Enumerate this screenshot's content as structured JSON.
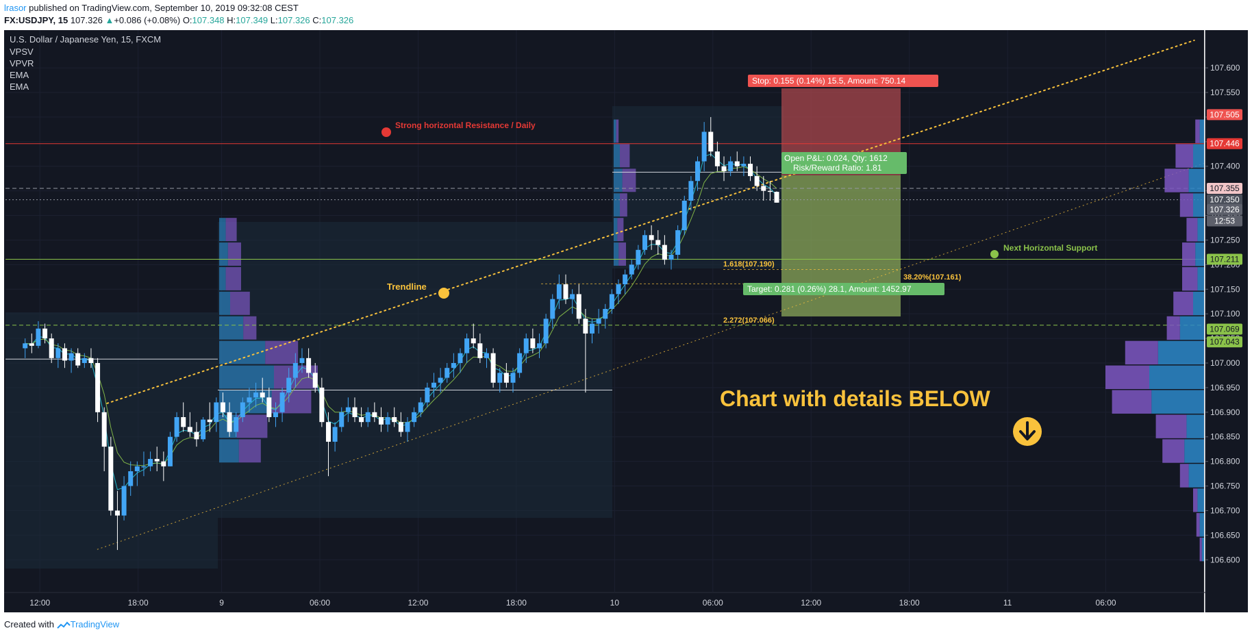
{
  "header": {
    "author": "lrasor",
    "published": "published on TradingView.com, September 10, 2019 09:32:08 CEST",
    "symbol": "FX:USDJPY, 15",
    "last": "107.326",
    "change": "+0.086 (+0.08%)",
    "o_label": "O:",
    "o": "107.348",
    "h_label": "H:",
    "h": "107.349",
    "l_label": "L:",
    "l": "107.326",
    "c_label": "C:",
    "c": "107.326"
  },
  "legend": {
    "instrument": "U.S. Dollar / Japanese Yen, 15, FXCM",
    "studies": [
      "VPSV",
      "VPVR",
      "EMA",
      "EMA"
    ]
  },
  "annotations": {
    "resistance": "Strong horizontal Resistance / Daily",
    "support": "Next Horizontal Support",
    "trendline": "Trendline",
    "fib1": "1.618(107.190)",
    "fib2": "38.20%(107.161)",
    "fib3": "2.272(107.066)",
    "stop": "Stop: 0.155 (0.14%) 15.5, Amount: 750.14",
    "target": "Target: 0.281 (0.26%) 28.1, Amount: 1452.97",
    "pnl1": "Open P&L: 0.024, Qty: 1612",
    "pnl2": "Risk/Reward Ratio: 1.81",
    "callout": "Chart with details BELOW"
  },
  "footer": {
    "created": "Created with",
    "brand": "TradingView"
  },
  "colors": {
    "background": "#131722",
    "up": "#42a5f5",
    "down": "#ffffff",
    "resistance": "#e53935",
    "support": "#8bc34a",
    "trend": "#f9c23c",
    "stop_zone": "#b44a4e",
    "target_zone": "#8ba85a",
    "vp_up": "#2d88c9",
    "vp_down": "#7e57c2"
  },
  "chart_data": {
    "type": "candlestick",
    "symbol": "USDJPY",
    "timeframe": "15",
    "ylim": [
      106.56,
      107.66
    ],
    "y_ticks": [
      "107.600",
      "107.550",
      "107.500",
      "107.450",
      "107.400",
      "107.350",
      "107.300",
      "107.250",
      "107.200",
      "107.150",
      "107.100",
      "107.050",
      "107.000",
      "106.950",
      "106.900",
      "106.850",
      "106.800",
      "106.750",
      "106.700",
      "106.650",
      "106.600"
    ],
    "x_ticks": [
      {
        "label": "12:00",
        "t": 0.9
      },
      {
        "label": "18:00",
        "t": 6.9
      },
      {
        "label": "9",
        "t": 12.0
      },
      {
        "label": "06:00",
        "t": 18.0
      },
      {
        "label": "12:00",
        "t": 24.0
      },
      {
        "label": "18:00",
        "t": 30.0
      },
      {
        "label": "10",
        "t": 36.0
      },
      {
        "label": "06:00",
        "t": 42.0
      },
      {
        "label": "12:00",
        "t": 48.0
      },
      {
        "label": "18:00",
        "t": 54.0
      },
      {
        "label": "11",
        "t": 60.0
      },
      {
        "label": "06:00",
        "t": 66.0
      }
    ],
    "xlim_hours": [
      -1.2,
      72.0
    ],
    "last_bar_hours": 45.9,
    "price_labels": [
      {
        "text": "107.505",
        "y": 107.505,
        "bg": "#ef5350",
        "fg": "#ffffff"
      },
      {
        "text": "107.446",
        "y": 107.446,
        "bg": "#e53935",
        "fg": "#ffffff"
      },
      {
        "text": "107.355",
        "y": 107.355,
        "bg": "#f2c6c8",
        "fg": "#131722"
      },
      {
        "text": "107.350",
        "y": 107.332,
        "bg": "#4a4f5a",
        "fg": "#ffffff"
      },
      {
        "text": "107.326",
        "y": 107.312,
        "bg": "#5d606b",
        "fg": "#ffffff"
      },
      {
        "text": "12:53",
        "y": 107.289,
        "bg": "#5d606b",
        "fg": "#ffffff"
      },
      {
        "text": "107.211",
        "y": 107.211,
        "bg": "#8bc34a",
        "fg": "#131722"
      },
      {
        "text": "107.069",
        "y": 107.069,
        "bg": "#8bc34a",
        "fg": "#131722"
      },
      {
        "text": "107.043",
        "y": 107.043,
        "bg": "#8bc34a",
        "fg": "#131722"
      }
    ],
    "levels": {
      "resistance": 107.446,
      "support": 107.211,
      "entry": 107.343,
      "stop": 107.498,
      "target": 107.062,
      "fib_1618": 107.19,
      "fib_382": 107.161,
      "fib_2272": 107.066
    },
    "trendline_upper": {
      "from": {
        "hours": 5.0,
        "price": 106.918
      },
      "to": {
        "hours": 71.4,
        "price": 107.656
      }
    },
    "trendline_lower": {
      "from": {
        "hours": 4.4,
        "price": 106.621
      },
      "to": {
        "hours": 72.0,
        "price": 107.406
      }
    },
    "series": [
      {
        "name": "candles",
        "values": [
          [
            107.03,
            107.05,
            107.01,
            107.04
          ],
          [
            107.04,
            107.06,
            107.02,
            107.035
          ],
          [
            107.035,
            107.085,
            107.03,
            107.07
          ],
          [
            107.07,
            107.08,
            107.04,
            107.05
          ],
          [
            107.05,
            107.06,
            107.0,
            107.01
          ],
          [
            107.01,
            107.04,
            106.99,
            107.03
          ],
          [
            107.03,
            107.04,
            106.99,
            107.005
          ],
          [
            107.005,
            107.03,
            106.98,
            107.02
          ],
          [
            107.02,
            107.03,
            106.99,
            106.995
          ],
          [
            107.0,
            107.02,
            106.99,
            107.01
          ],
          [
            107.01,
            107.03,
            106.99,
            107.0
          ],
          [
            107.0,
            107.01,
            106.88,
            106.9
          ],
          [
            106.9,
            106.91,
            106.78,
            106.83
          ],
          [
            106.83,
            106.85,
            106.69,
            106.7
          ],
          [
            106.7,
            106.74,
            106.62,
            106.69
          ],
          [
            106.69,
            106.77,
            106.68,
            106.75
          ],
          [
            106.75,
            106.8,
            106.73,
            106.78
          ],
          [
            106.78,
            106.8,
            106.75,
            106.79
          ],
          [
            106.79,
            106.82,
            106.77,
            106.79
          ],
          [
            106.79,
            106.82,
            106.78,
            106.805
          ],
          [
            106.805,
            106.83,
            106.78,
            106.8
          ],
          [
            106.8,
            106.82,
            106.76,
            106.79
          ],
          [
            106.79,
            106.86,
            106.79,
            106.85
          ],
          [
            106.85,
            106.9,
            106.84,
            106.89
          ],
          [
            106.89,
            106.92,
            106.86,
            106.87
          ],
          [
            106.87,
            106.9,
            106.85,
            106.86
          ],
          [
            106.86,
            106.88,
            106.83,
            106.845
          ],
          [
            106.845,
            106.89,
            106.84,
            106.885
          ],
          [
            106.885,
            106.92,
            106.86,
            106.88
          ],
          [
            106.88,
            106.93,
            106.86,
            106.92
          ],
          [
            106.92,
            106.94,
            106.89,
            106.9
          ],
          [
            106.9,
            106.92,
            106.85,
            106.86
          ],
          [
            106.86,
            106.9,
            106.85,
            106.89
          ],
          [
            106.89,
            106.93,
            106.88,
            106.92
          ],
          [
            106.92,
            106.95,
            106.9,
            106.93
          ],
          [
            106.93,
            106.96,
            106.91,
            106.94
          ],
          [
            106.94,
            106.97,
            106.92,
            106.93
          ],
          [
            106.93,
            106.95,
            106.88,
            106.89
          ],
          [
            106.89,
            106.92,
            106.87,
            106.9
          ],
          [
            106.9,
            106.95,
            106.88,
            106.94
          ],
          [
            106.94,
            106.99,
            106.92,
            106.97
          ],
          [
            106.97,
            107.02,
            106.95,
            107.0
          ],
          [
            107.0,
            107.03,
            106.98,
            107.01
          ],
          [
            107.01,
            107.03,
            106.97,
            106.98
          ],
          [
            106.98,
            107.0,
            106.94,
            106.95
          ],
          [
            106.95,
            106.97,
            106.87,
            106.88
          ],
          [
            106.88,
            106.9,
            106.77,
            106.84
          ],
          [
            106.84,
            106.88,
            106.82,
            106.87
          ],
          [
            106.87,
            106.91,
            106.86,
            106.9
          ],
          [
            106.9,
            106.93,
            106.88,
            106.91
          ],
          [
            106.91,
            106.93,
            106.88,
            106.89
          ],
          [
            106.89,
            106.91,
            106.87,
            106.88
          ],
          [
            106.88,
            106.91,
            106.87,
            106.9
          ],
          [
            106.9,
            106.92,
            106.88,
            106.89
          ],
          [
            106.89,
            106.91,
            106.86,
            106.875
          ],
          [
            106.875,
            106.9,
            106.86,
            106.89
          ],
          [
            106.89,
            106.91,
            106.87,
            106.88
          ],
          [
            106.88,
            106.9,
            106.85,
            106.86
          ],
          [
            106.86,
            106.89,
            106.84,
            106.88
          ],
          [
            106.88,
            106.91,
            106.87,
            106.9
          ],
          [
            106.9,
            106.93,
            106.89,
            106.92
          ],
          [
            106.92,
            106.96,
            106.91,
            106.95
          ],
          [
            106.95,
            106.98,
            106.93,
            106.96
          ],
          [
            106.96,
            106.99,
            106.94,
            106.97
          ],
          [
            106.97,
            107.0,
            106.96,
            106.99
          ],
          [
            106.99,
            107.02,
            106.97,
            107.0
          ],
          [
            107.0,
            107.03,
            106.98,
            107.02
          ],
          [
            107.02,
            107.06,
            107.0,
            107.05
          ],
          [
            107.05,
            107.08,
            107.03,
            107.04
          ],
          [
            107.04,
            107.06,
            107.0,
            107.01
          ],
          [
            107.01,
            107.03,
            106.99,
            107.02
          ],
          [
            107.02,
            107.03,
            106.95,
            106.96
          ],
          [
            106.96,
            106.99,
            106.94,
            106.98
          ],
          [
            106.98,
            107.0,
            106.95,
            106.96
          ],
          [
            106.96,
            106.99,
            106.94,
            106.98
          ],
          [
            106.98,
            107.03,
            106.97,
            107.02
          ],
          [
            107.02,
            107.06,
            107.0,
            107.05
          ],
          [
            107.05,
            107.07,
            107.02,
            107.03
          ],
          [
            107.03,
            107.06,
            107.01,
            107.04
          ],
          [
            107.04,
            107.1,
            107.03,
            107.09
          ],
          [
            107.09,
            107.14,
            107.07,
            107.13
          ],
          [
            107.13,
            107.18,
            107.11,
            107.16
          ],
          [
            107.16,
            107.18,
            107.12,
            107.13
          ],
          [
            107.13,
            107.15,
            107.1,
            107.14
          ],
          [
            107.14,
            107.16,
            107.08,
            107.09
          ],
          [
            107.09,
            107.11,
            106.94,
            107.06
          ],
          [
            107.06,
            107.09,
            107.04,
            107.08
          ],
          [
            107.08,
            107.11,
            107.06,
            107.09
          ],
          [
            107.09,
            107.12,
            107.07,
            107.11
          ],
          [
            107.11,
            107.15,
            107.1,
            107.14
          ],
          [
            107.14,
            107.17,
            107.12,
            107.16
          ],
          [
            107.16,
            107.19,
            107.14,
            107.18
          ],
          [
            107.18,
            107.21,
            107.17,
            107.2
          ],
          [
            107.2,
            107.24,
            107.19,
            107.23
          ],
          [
            107.23,
            107.27,
            107.22,
            107.26
          ],
          [
            107.26,
            107.28,
            107.23,
            107.25
          ],
          [
            107.25,
            107.27,
            107.22,
            107.24
          ],
          [
            107.24,
            107.26,
            107.2,
            107.21
          ],
          [
            107.21,
            107.23,
            107.19,
            107.22
          ],
          [
            107.22,
            107.28,
            107.21,
            107.27
          ],
          [
            107.27,
            107.34,
            107.26,
            107.33
          ],
          [
            107.33,
            107.38,
            107.31,
            107.37
          ],
          [
            107.37,
            107.42,
            107.35,
            107.41
          ],
          [
            107.41,
            107.49,
            107.39,
            107.47
          ],
          [
            107.47,
            107.5,
            107.42,
            107.43
          ],
          [
            107.43,
            107.45,
            107.39,
            107.4
          ],
          [
            107.4,
            107.42,
            107.37,
            107.39
          ],
          [
            107.39,
            107.42,
            107.38,
            107.41
          ],
          [
            107.41,
            107.43,
            107.39,
            107.4
          ],
          [
            107.4,
            107.42,
            107.38,
            107.405
          ],
          [
            107.405,
            107.42,
            107.37,
            107.38
          ],
          [
            107.38,
            107.4,
            107.35,
            107.36
          ],
          [
            107.36,
            107.38,
            107.33,
            107.35
          ],
          [
            107.35,
            107.37,
            107.33,
            107.348
          ],
          [
            107.348,
            107.349,
            107.326,
            107.326
          ]
        ]
      },
      {
        "name": "EMA",
        "values": []
      },
      {
        "name": "EMA",
        "values": []
      }
    ],
    "profile_bins": [
      106.62,
      106.67,
      106.72,
      106.77,
      106.82,
      106.87,
      106.92,
      106.97,
      107.02,
      107.07,
      107.12,
      107.17,
      107.22,
      107.27,
      107.32,
      107.37,
      107.42,
      107.47
    ],
    "profile_up": [
      2,
      4,
      6,
      14,
      18,
      16,
      48,
      50,
      42,
      22,
      10,
      6,
      8,
      6,
      10,
      14,
      10,
      4
    ],
    "profile_down": [
      2,
      3,
      4,
      8,
      20,
      28,
      36,
      40,
      30,
      12,
      18,
      14,
      12,
      10,
      12,
      22,
      16,
      4
    ]
  }
}
